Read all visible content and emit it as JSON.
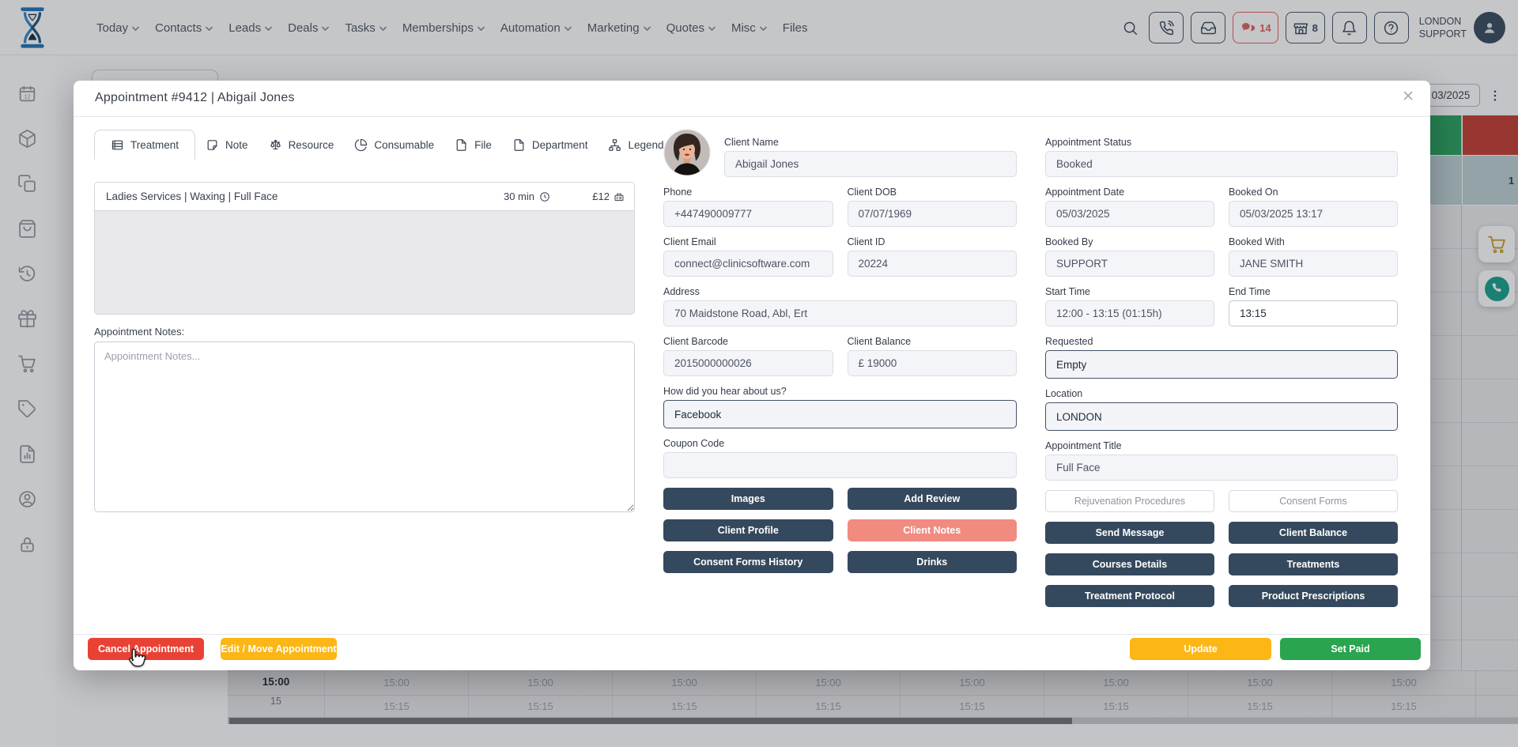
{
  "colors": {
    "primary_dark": "#35495e",
    "salmon": "#f18b80",
    "cancel_red": "#e94235",
    "action_yellow": "#fcb615",
    "paid_green": "#2aa44f",
    "logo_blue": "#1c72b8",
    "badge_red": "#e0615a",
    "event_green": "#27a05c",
    "event_red": "#c23a31",
    "event_teal": "#bbd0d4",
    "float_cart_gold": "#c9971c",
    "float_phone_teal": "#16a08c"
  },
  "nav": {
    "logo_icon": "hourglass-logo-icon",
    "menu": [
      {
        "label": "Today",
        "caret": true
      },
      {
        "label": "Contacts",
        "caret": true
      },
      {
        "label": "Leads",
        "caret": true
      },
      {
        "label": "Deals",
        "caret": true
      },
      {
        "label": "Tasks",
        "caret": true
      },
      {
        "label": "Memberships",
        "caret": true
      },
      {
        "label": "Automation",
        "caret": true
      },
      {
        "label": "Marketing",
        "caret": true
      },
      {
        "label": "Quotes",
        "caret": true
      },
      {
        "label": "Misc",
        "caret": true
      },
      {
        "label": "Files",
        "caret": false
      }
    ],
    "search_icon": "search-icon",
    "buttons": [
      {
        "name": "phone-button",
        "icon": "phone-icon"
      },
      {
        "name": "inbox-button",
        "icon": "inbox-icon"
      },
      {
        "name": "messages-button",
        "icon": "chat-icon",
        "count": "14",
        "accent": true
      },
      {
        "name": "till-button",
        "icon": "till-icon",
        "count": "8",
        "accent": false
      },
      {
        "name": "notifications-button",
        "icon": "bell-icon"
      },
      {
        "name": "help-button",
        "icon": "help-icon"
      }
    ],
    "user_line1": "LONDON",
    "user_line2": "SUPPORT",
    "avatar_icon": "user-icon"
  },
  "sidebar": {
    "items": [
      {
        "id": "calendar",
        "icon": "calendar-icon"
      },
      {
        "id": "packages",
        "icon": "package-icon"
      },
      {
        "id": "duplicates",
        "icon": "copy-icon"
      },
      {
        "id": "shop",
        "icon": "shopping-bag-icon"
      },
      {
        "id": "history",
        "icon": "history-icon"
      },
      {
        "id": "gifts",
        "icon": "gift-icon"
      },
      {
        "id": "cart",
        "icon": "cart-icon"
      },
      {
        "id": "vouchers",
        "icon": "tag-icon"
      },
      {
        "id": "reports",
        "icon": "report-icon"
      },
      {
        "id": "clients",
        "icon": "user-circle-icon"
      },
      {
        "id": "security",
        "icon": "lock-icon"
      }
    ]
  },
  "calendar_bg": {
    "date_field": "03/2025",
    "menu_icon": "kebab-icon",
    "gutter_hour": "15:00",
    "gutter_sub": "15",
    "col_row1": "15:00",
    "col_row2": "15:15",
    "num_columns": 9,
    "event_partial_label": "1",
    "float_buttons": [
      {
        "name": "cart-button",
        "icon": "cart-icon"
      },
      {
        "name": "call-button",
        "icon": "phone-solid-icon"
      }
    ]
  },
  "modal": {
    "title": "Appointment #9412 | Abigail Jones",
    "close_glyph": "✕",
    "tabs": [
      {
        "label": "Treatment",
        "icon": "treatment-icon",
        "active": true
      },
      {
        "label": "Note",
        "icon": "note-icon",
        "active": false
      },
      {
        "label": "Resource",
        "icon": "resource-icon",
        "active": false
      },
      {
        "label": "Consumable",
        "icon": "consumable-icon",
        "active": false
      },
      {
        "label": "File",
        "icon": "file-icon",
        "active": false
      },
      {
        "label": "Department",
        "icon": "department-icon",
        "active": false
      },
      {
        "label": "Legend",
        "icon": "legend-icon",
        "active": false
      }
    ],
    "treatment": {
      "name": "Ladies Services | Waxing | Full Face",
      "duration": "30 min",
      "duration_icon": "clock-icon",
      "price": "£12",
      "price_icon": "price-icon"
    },
    "notes_label": "Appointment Notes:",
    "notes_placeholder": "Appointment Notes...",
    "client": {
      "rows": [
        {
          "with_avatar": true,
          "cells": [
            {
              "label": "Client Name",
              "value": "Abigail Jones",
              "type": "input"
            }
          ]
        },
        {
          "cells": [
            {
              "label": "Phone",
              "value": "+447490009777",
              "type": "input"
            },
            {
              "label": "Client DOB",
              "value": "07/07/1969",
              "type": "input"
            }
          ]
        },
        {
          "cells": [
            {
              "label": "Client Email",
              "value": "connect@clinicsoftware.com",
              "type": "input"
            },
            {
              "label": "Client ID",
              "value": "20224",
              "type": "input"
            }
          ]
        },
        {
          "cells": [
            {
              "label": "Address",
              "value": "70  Maidstone Road, Abl, Ert",
              "type": "input"
            }
          ]
        },
        {
          "cells": [
            {
              "label": "Client Barcode",
              "value": "2015000000026",
              "type": "input"
            },
            {
              "label": "Client Balance",
              "value": "£ 19000",
              "type": "input"
            }
          ]
        },
        {
          "cells": [
            {
              "label": "How did you hear about us?",
              "value": "Facebook",
              "type": "select"
            }
          ]
        },
        {
          "cells": [
            {
              "label": "Coupon Code",
              "value": "",
              "type": "input"
            }
          ]
        }
      ]
    },
    "appointment": {
      "rows": [
        {
          "cells": [
            {
              "label": "Appointment Status",
              "value": "Booked",
              "type": "input"
            }
          ]
        },
        {
          "cells": [
            {
              "label": "Appointment Date",
              "value": "05/03/2025",
              "type": "input"
            },
            {
              "label": "Booked On",
              "value": "05/03/2025 13:17",
              "type": "input"
            }
          ]
        },
        {
          "cells": [
            {
              "label": "Booked By",
              "value": "SUPPORT",
              "type": "input"
            },
            {
              "label": "Booked With",
              "value": "JANE SMITH",
              "type": "input"
            }
          ]
        },
        {
          "cells": [
            {
              "label": "Start Time",
              "value": "12:00 - 13:15 (01:15h)",
              "type": "input"
            },
            {
              "label": "End Time",
              "value": "13:15",
              "type": "time"
            }
          ]
        },
        {
          "cells": [
            {
              "label": "Requested",
              "value": "Empty",
              "type": "select"
            }
          ]
        },
        {
          "cells": [
            {
              "label": "Location",
              "value": "LONDON",
              "type": "select"
            }
          ]
        },
        {
          "cells": [
            {
              "label": "Appointment Title",
              "value": "Full Face",
              "type": "input"
            }
          ]
        }
      ]
    },
    "left_buttons": [
      {
        "label": "Images",
        "variant": "dark"
      },
      {
        "label": "Add Review",
        "variant": "dark"
      },
      {
        "label": "Client Profile",
        "variant": "dark"
      },
      {
        "label": "Client Notes",
        "variant": "salmon"
      },
      {
        "label": "Consent Forms History",
        "variant": "dark"
      },
      {
        "label": "Drinks",
        "variant": "dark"
      }
    ],
    "right_buttons": [
      {
        "label": "Rejuvenation Procedures",
        "variant": "outline"
      },
      {
        "label": "Consent Forms",
        "variant": "outline"
      },
      {
        "label": "Send Message",
        "variant": "dark"
      },
      {
        "label": "Client Balance",
        "variant": "dark"
      },
      {
        "label": "Courses Details",
        "variant": "dark"
      },
      {
        "label": "Treatments",
        "variant": "dark"
      },
      {
        "label": "Treatment Protocol",
        "variant": "dark"
      },
      {
        "label": "Product Prescriptions",
        "variant": "dark"
      }
    ],
    "footer": {
      "cancel": "Cancel Appointment",
      "edit_move": "Edit / Move Appointment",
      "update": "Update",
      "set_paid": "Set Paid"
    }
  }
}
